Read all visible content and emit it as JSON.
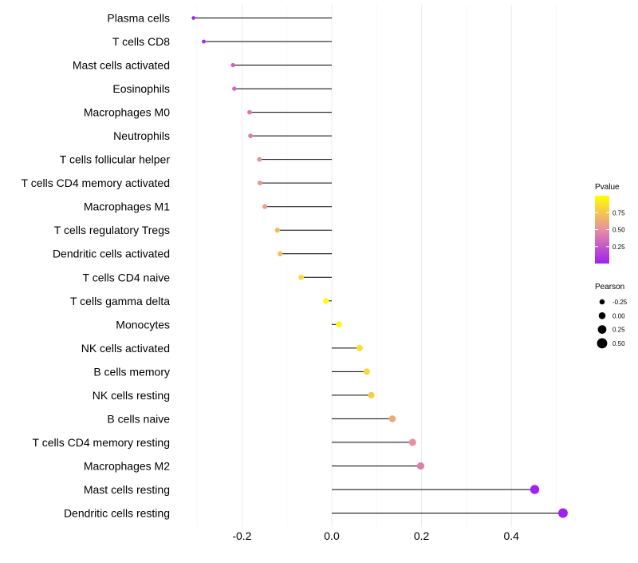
{
  "chart_data": {
    "type": "lollipop",
    "title": "",
    "xlabel": "",
    "ylabel": "",
    "xlim": [
      -0.3,
      0.52
    ],
    "x_ticks": [
      -0.2,
      0.0,
      0.2,
      0.4
    ],
    "x_tick_labels": [
      "-0.2",
      "0.0",
      "0.2",
      "0.4"
    ],
    "grid": true,
    "baseline": 0,
    "categories": [
      "Plasma cells",
      "T cells CD8",
      "Mast cells activated",
      "Eosinophils",
      "Macrophages M0",
      "Neutrophils",
      "T cells follicular helper",
      "T cells CD4 memory activated",
      "Macrophages M1",
      "T cells regulatory  Tregs",
      "Dendritic cells activated",
      "T cells CD4 naive",
      "T cells gamma delta",
      "Monocytes",
      "NK cells activated",
      "B cells memory",
      "NK cells resting",
      "B cells naive",
      "T cells CD4 memory resting",
      "Macrophages M2",
      "Mast cells resting",
      "Dendritic cells resting"
    ],
    "pearson": [
      -0.308,
      -0.285,
      -0.22,
      -0.217,
      -0.183,
      -0.181,
      -0.161,
      -0.16,
      -0.149,
      -0.121,
      -0.115,
      -0.068,
      -0.013,
      0.016,
      0.062,
      0.078,
      0.088,
      0.135,
      0.18,
      0.198,
      0.452,
      0.515
    ],
    "pvalue": [
      0.02,
      0.04,
      0.3,
      0.33,
      0.4,
      0.42,
      0.52,
      0.53,
      0.58,
      0.7,
      0.72,
      0.85,
      0.99,
      0.97,
      0.86,
      0.82,
      0.78,
      0.62,
      0.5,
      0.42,
      0.003,
      0.0001
    ],
    "legends": {
      "color": {
        "title": "Pvalue",
        "ticks": [
          0.25,
          0.5,
          0.75
        ],
        "tick_labels": [
          "0.25",
          "0.50",
          "0.75"
        ],
        "range": [
          0,
          1
        ],
        "low_color": "#a020f0",
        "mid_color": "#e88fa0",
        "high_color": "#ffff00"
      },
      "size": {
        "title": "Pearson",
        "values": [
          -0.25,
          0.0,
          0.25,
          0.5
        ],
        "labels": [
          "-0.25",
          "0.00",
          "0.25",
          "0.50"
        ]
      }
    },
    "legend_position": "right"
  }
}
